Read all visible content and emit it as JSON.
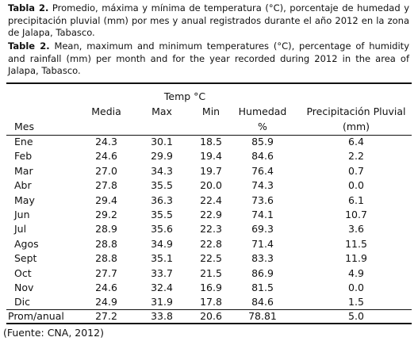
{
  "captions": [
    {
      "label": "Tabla 2.",
      "text": "Promedio, máxima y mínima de temperatura (°C), porcentaje de humedad y precipitación pluvial (mm) por mes y anual registrados durante el año 2012 en la zona de Jalapa, Tabasco."
    },
    {
      "label": "Table 2.",
      "text": "Mean, maximum and minimum temperatures (°C), percentage of humidity and rainfall (mm) per month and for the year recorded during 2012 in the area of Jalapa, Tabasco."
    }
  ],
  "table": {
    "group_header": "Temp °C",
    "header": [
      "Mes",
      "Media",
      "Max",
      "Min",
      "Humedad",
      "Precipitación Pluvial"
    ],
    "header_units": [
      "%",
      "(mm)"
    ],
    "rows": [
      [
        "Ene",
        "24.3",
        "30.1",
        "18.5",
        "85.9",
        "6.4"
      ],
      [
        "Feb",
        "24.6",
        "29.9",
        "19.4",
        "84.6",
        "2.2"
      ],
      [
        "Mar",
        "27.0",
        "34.3",
        "19.7",
        "76.4",
        "0.7"
      ],
      [
        "Abr",
        "27.8",
        "35.5",
        "20.0",
        "74.3",
        "0.0"
      ],
      [
        "May",
        "29.4",
        "36.3",
        "22.4",
        "73.6",
        "6.1"
      ],
      [
        "Jun",
        "29.2",
        "35.5",
        "22.9",
        "74.1",
        "10.7"
      ],
      [
        "Jul",
        "28.9",
        "35.6",
        "22.3",
        "69.3",
        "3.6"
      ],
      [
        "Agos",
        "28.8",
        "34.9",
        "22.8",
        "71.4",
        "11.5"
      ],
      [
        "Sept",
        "28.8",
        "35.1",
        "22.5",
        "83.3",
        "11.9"
      ],
      [
        "Oct",
        "27.7",
        "33.7",
        "21.5",
        "86.9",
        "4.9"
      ],
      [
        "Nov",
        "24.6",
        "32.4",
        "16.9",
        "81.5",
        "0.0"
      ],
      [
        "Dic",
        "24.9",
        "31.9",
        "17.8",
        "84.6",
        "1.5"
      ]
    ],
    "footer": [
      "Prom/anual",
      "27.2",
      "33.8",
      "20.6",
      "78.81",
      "5.0"
    ]
  },
  "note": "(Fuente: CNA, 2012)"
}
